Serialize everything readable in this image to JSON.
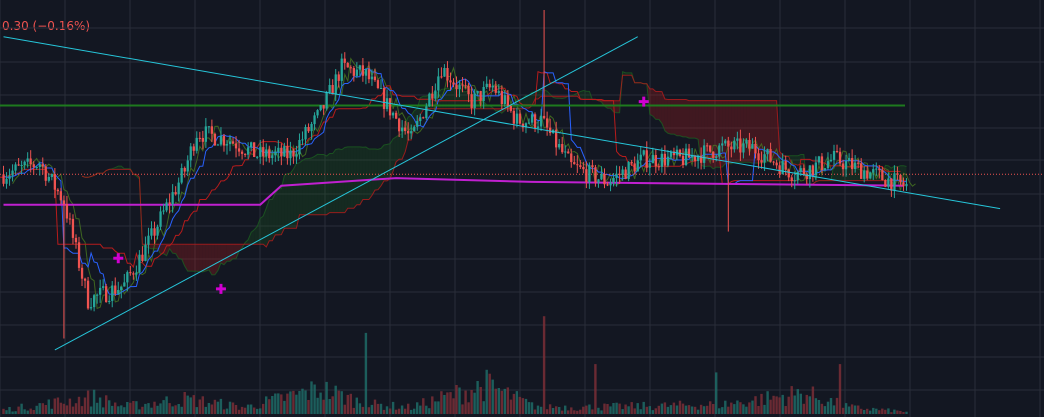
{
  "header": {
    "change_text": "0.30 (−0.16%)"
  },
  "colors": {
    "background": "#131722",
    "grid": "#2a2e39",
    "up": "#26a69a",
    "down": "#ef5350",
    "volume_up": "#1f6b66",
    "volume_down": "#7a2e36",
    "trendline": "#26c6da",
    "horizontal_level": "#1e7a1e",
    "magenta_line": "#c020d0",
    "tenkan": "#2962ff",
    "kijun": "#b71c1c",
    "chikou": "#4a7a20",
    "cloud_bull": "#1b5e20",
    "cloud_bear": "#b71c1c",
    "price_line": "#ef5350",
    "marker": "#d000d0"
  },
  "chart_data": {
    "type": "candlestick",
    "title": "",
    "xlabel": "",
    "ylabel": "",
    "grid": true,
    "ylim": [
      0,
      100
    ],
    "volume_max": 100,
    "n_bars": 300,
    "candle_anchors": [
      [
        0,
        57
      ],
      [
        12,
        60
      ],
      [
        20,
        50
      ],
      [
        28,
        24
      ],
      [
        40,
        28
      ],
      [
        48,
        39
      ],
      [
        60,
        58
      ],
      [
        64,
        68
      ],
      [
        75,
        66
      ],
      [
        84,
        62
      ],
      [
        95,
        62
      ],
      [
        105,
        73
      ],
      [
        112,
        85
      ],
      [
        120,
        83
      ],
      [
        135,
        66
      ],
      [
        145,
        85
      ],
      [
        155,
        76
      ],
      [
        162,
        80
      ],
      [
        170,
        71
      ],
      [
        178,
        71
      ],
      [
        188,
        59
      ],
      [
        200,
        55
      ],
      [
        212,
        61
      ],
      [
        225,
        61
      ],
      [
        238,
        64
      ],
      [
        248,
        64
      ],
      [
        262,
        57
      ],
      [
        275,
        61
      ],
      [
        288,
        57
      ],
      [
        298,
        54
      ]
    ],
    "volume_anchors": [
      [
        0,
        5
      ],
      [
        30,
        20
      ],
      [
        40,
        9
      ],
      [
        60,
        18
      ],
      [
        80,
        8
      ],
      [
        105,
        30
      ],
      [
        120,
        12
      ],
      [
        135,
        8
      ],
      [
        160,
        35
      ],
      [
        175,
        10
      ],
      [
        190,
        8
      ],
      [
        220,
        10
      ],
      [
        240,
        12
      ],
      [
        265,
        25
      ],
      [
        280,
        8
      ],
      [
        298,
        3
      ]
    ],
    "tenkan_offset": 0,
    "kijun_offset": -2,
    "chikou_offset": 3,
    "horizontal_level": 75,
    "price_line": 57,
    "magenta_line": [
      [
        0,
        49
      ],
      [
        85,
        49
      ],
      [
        92,
        54
      ],
      [
        130,
        56
      ],
      [
        175,
        55
      ],
      [
        298,
        54
      ]
    ],
    "trendlines": [
      [
        [
          0,
          93
        ],
        [
          330,
          48
        ]
      ],
      [
        [
          17,
          11
        ],
        [
          210,
          93
        ]
      ]
    ],
    "markers": [
      [
        38,
        35
      ],
      [
        72,
        27
      ],
      [
        212,
        76
      ]
    ]
  }
}
